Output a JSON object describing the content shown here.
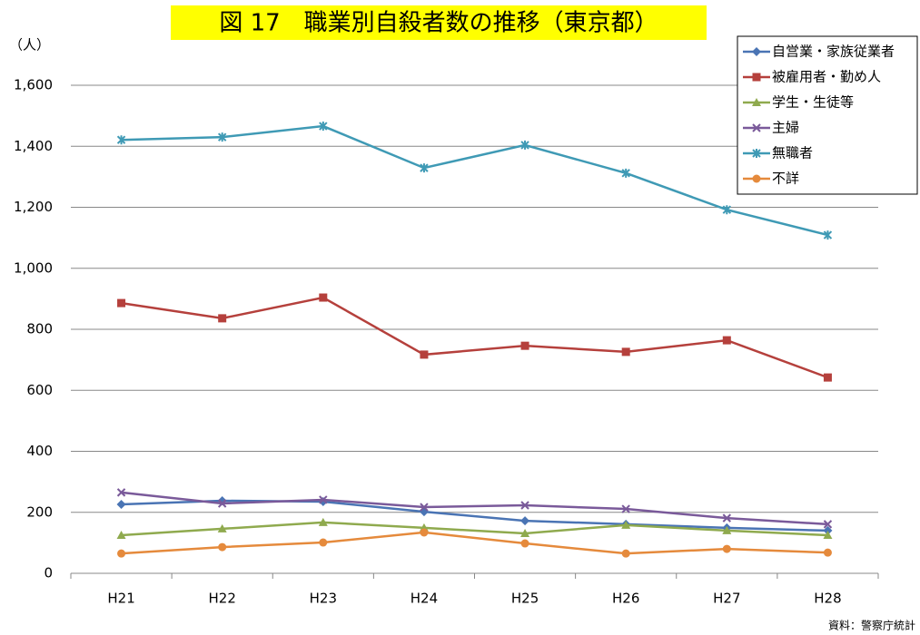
{
  "chart_data": {
    "type": "line",
    "title": "図 17　職業別自殺者数の推移（東京都）",
    "y_label": "（人）",
    "source": "資料：警察庁統計",
    "categories": [
      "H21",
      "H22",
      "H23",
      "H24",
      "H25",
      "H26",
      "H27",
      "H28"
    ],
    "ylim": [
      0,
      1600
    ],
    "yticks": [
      0,
      200,
      400,
      600,
      800,
      {
        "value": 1000,
        "label": "1,000"
      },
      {
        "value": 1200,
        "label": "1,200"
      },
      {
        "value": 1400,
        "label": "1,400"
      },
      {
        "value": 1600,
        "label": "1,600"
      }
    ],
    "grid": true,
    "legend": "top-right",
    "series": [
      {
        "name": "自営業・家族従業者",
        "color": "#4a74b4",
        "marker": "diamond",
        "values": [
          226,
          238,
          235,
          202,
          172,
          161,
          149,
          140
        ]
      },
      {
        "name": "被雇用者・勤め人",
        "color": "#b5403c",
        "marker": "square",
        "values": [
          886,
          836,
          904,
          717,
          746,
          726,
          764,
          642
        ]
      },
      {
        "name": "学生・生徒等",
        "color": "#8faa4e",
        "marker": "triangle",
        "values": [
          125,
          146,
          167,
          149,
          131,
          158,
          140,
          125
        ]
      },
      {
        "name": "主婦",
        "color": "#7a5a9a",
        "marker": "x",
        "values": [
          265,
          229,
          241,
          217,
          223,
          211,
          181,
          161
        ]
      },
      {
        "name": "無職者",
        "color": "#3f9ab5",
        "marker": "star",
        "values": [
          1421,
          1430,
          1466,
          1329,
          1404,
          1312,
          1192,
          1109
        ]
      },
      {
        "name": "不詳",
        "color": "#e58a3c",
        "marker": "circle",
        "values": [
          65,
          86,
          101,
          134,
          98,
          65,
          80,
          68
        ]
      }
    ]
  }
}
